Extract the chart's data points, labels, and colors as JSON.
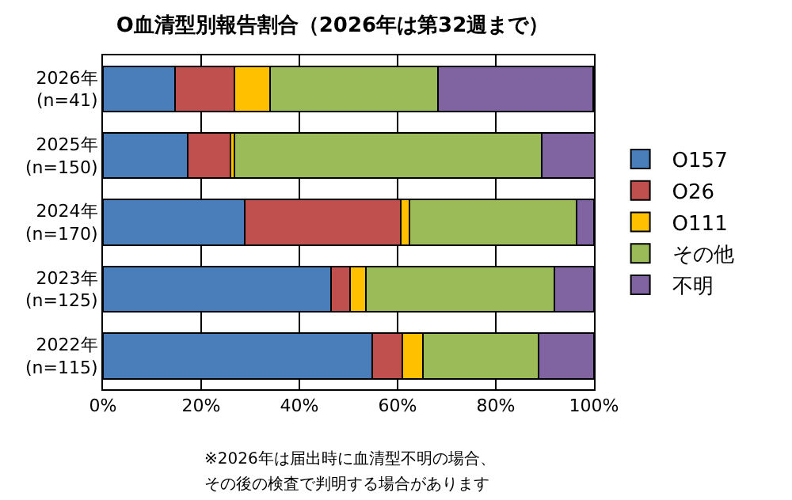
{
  "chart_data": {
    "type": "bar",
    "orientation": "horizontal",
    "stacked": true,
    "title": "O血清型別報告割合（2026年は第32週まで）",
    "categories": [
      "2026年\n(n=41)",
      "2025年\n(n=150)",
      "2024年\n(n=170)",
      "2023年\n(n=125)",
      "2022年\n(n=115)"
    ],
    "series": [
      {
        "name": "O157",
        "color": "#4a7ebb",
        "values": [
          14.6,
          17.3,
          28.8,
          46.4,
          54.8
        ]
      },
      {
        "name": "O26",
        "color": "#c0504d",
        "values": [
          12.2,
          8.7,
          31.8,
          4.0,
          6.1
        ]
      },
      {
        "name": "O111",
        "color": "#ffc000",
        "values": [
          7.3,
          0.7,
          1.8,
          3.2,
          4.3
        ]
      },
      {
        "name": "その他",
        "color": "#9bbb59",
        "values": [
          34.1,
          62.7,
          34.1,
          38.4,
          23.5
        ]
      },
      {
        "name": "不明",
        "color": "#8064a2",
        "values": [
          31.7,
          10.7,
          3.5,
          8.0,
          11.3
        ]
      }
    ],
    "xlim": [
      0,
      100
    ],
    "xticks": [
      {
        "value": 0,
        "label": "0%"
      },
      {
        "value": 20,
        "label": "20%"
      },
      {
        "value": 40,
        "label": "40%"
      },
      {
        "value": 60,
        "label": "60%"
      },
      {
        "value": 80,
        "label": "80%"
      },
      {
        "value": 100,
        "label": "100%"
      }
    ],
    "grid": "x",
    "legend": "right",
    "annotations": [
      "※2026年は届出時に血清型不明の場合、",
      "その後の検査で判明する場合があります"
    ]
  }
}
